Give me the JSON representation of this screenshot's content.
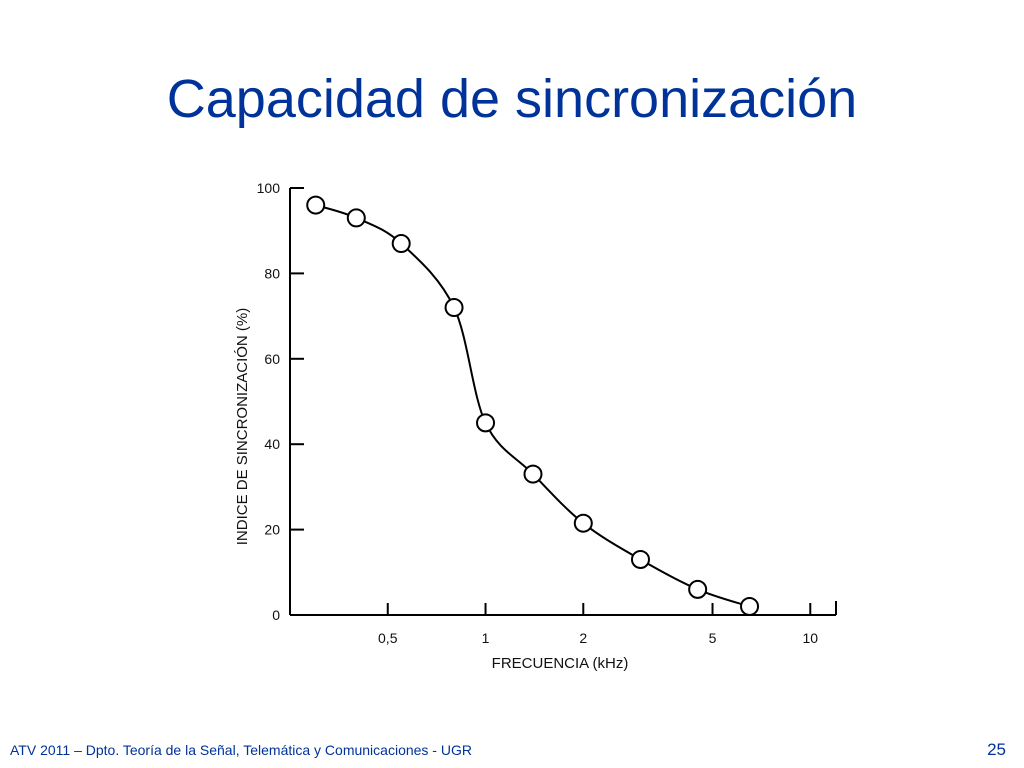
{
  "slide": {
    "title": "Capacidad de sincronización",
    "footer": "ATV 2011 – Dpto. Teoría de la Señal, Telemática y Comunicaciones - UGR",
    "page_number": "25"
  },
  "chart_data": {
    "type": "line",
    "title": "",
    "xlabel": "FRECUENCIA (kHz)",
    "ylabel": "INDICE DE SINCRONIZACIÓN (%)",
    "x_scale": "log",
    "xlim": [
      0.25,
      12
    ],
    "ylim": [
      0,
      100
    ],
    "x_ticks": [
      {
        "value": 0.5,
        "label": "0,5"
      },
      {
        "value": 1,
        "label": "1"
      },
      {
        "value": 2,
        "label": "2"
      },
      {
        "value": 5,
        "label": "5"
      },
      {
        "value": 10,
        "label": "10"
      }
    ],
    "y_ticks": [
      {
        "value": 0,
        "label": "0"
      },
      {
        "value": 20,
        "label": "20"
      },
      {
        "value": 40,
        "label": "40"
      },
      {
        "value": 60,
        "label": "60"
      },
      {
        "value": 80,
        "label": "80"
      },
      {
        "value": 100,
        "label": "100"
      }
    ],
    "series": [
      {
        "x": [
          0.3,
          0.4,
          0.55,
          0.8,
          1.0,
          1.4,
          2.0,
          3.0,
          4.5,
          6.5
        ],
        "y": [
          96,
          93,
          87,
          72,
          45,
          33,
          21.5,
          13,
          6,
          2
        ]
      }
    ],
    "grid": false,
    "legend": "none",
    "line_color": "#000000",
    "marker": "open-circle"
  }
}
